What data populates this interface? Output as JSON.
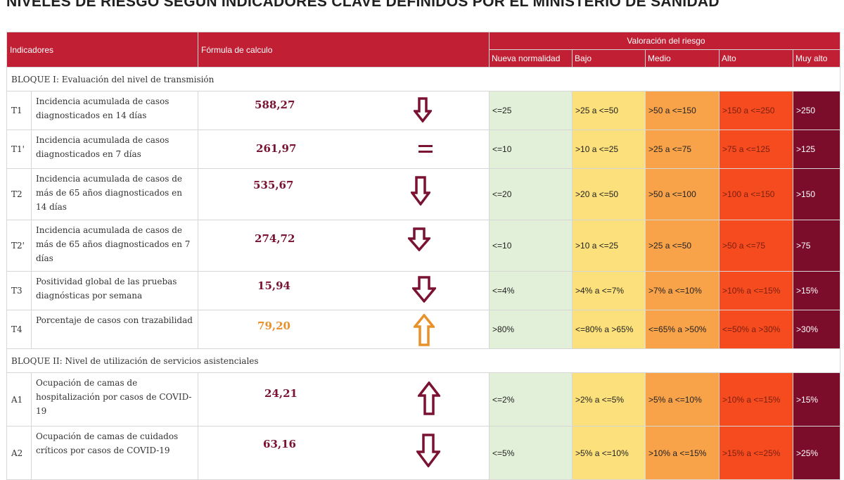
{
  "title": "NIVELES DE RIESGO SEGÚN INDICADORES CLAVE DEFINIDOS POR EL MINISTERIO DE SANIDAD",
  "header": {
    "indicadores": "Indicadores",
    "formula": "Fórmula de calculo",
    "valoracion": "Valoración del riesgo",
    "levels": [
      "Nueva normalidad",
      "Bajo",
      "Medio",
      "Alto",
      "Muy alto"
    ]
  },
  "blocks": [
    {
      "label": "BLOQUE I: Evaluación del nivel de transmisión"
    },
    {
      "label": "BLOQUE II: Nivel de utilización de servicios asistenciales"
    }
  ],
  "rows": [
    {
      "code": "T1",
      "desc": "Incidencia acumulada de casos diagnosticados en 14 días",
      "value": "588,27",
      "trend": "down",
      "ranges": [
        "<=25",
        ">25 a <=50",
        ">50 a <=150",
        ">150 a <=250",
        ">250"
      ]
    },
    {
      "code": "T1'",
      "desc": "Incidencia acumulada de casos diagnosticados en 7 días",
      "value": "261,97",
      "trend": "equal",
      "ranges": [
        "<=10",
        ">10 a <=25",
        ">25 a <=75",
        ">75 a <=125",
        ">125"
      ]
    },
    {
      "code": "T2",
      "desc": "Incidencia acumulada de casos de más de 65 años diagnosticados en 14 días",
      "value": "535,67",
      "trend": "down",
      "ranges": [
        "<=20",
        ">20 a <=50",
        ">50 a <=100",
        ">100 a <=150",
        ">150"
      ]
    },
    {
      "code": "T2'",
      "desc": "Incidencia acumulada de casos de más de 65 años diagnosticados en 7 días",
      "value": "274,72",
      "trend": "down",
      "ranges": [
        "<=10",
        ">10 a <=25",
        ">25 a <=50",
        ">50 a <=75",
        ">75"
      ]
    },
    {
      "code": "T3",
      "desc": "Positividad global de las pruebas diagnósticas por semana",
      "value": "15,94",
      "trend": "down",
      "ranges": [
        "<=4%",
        ">4% a <=7%",
        ">7% a <=10%",
        ">10% a <=15%",
        ">15%"
      ]
    },
    {
      "code": "T4",
      "desc": "Porcentaje de casos con trazabilidad",
      "value": "79,20",
      "trend": "up-orange",
      "ranges": [
        ">80%",
        "<=80% a >65%",
        "<=65% a >50%",
        "<=50% a >30%",
        ">30%"
      ]
    },
    {
      "code": "A1",
      "desc": "Ocupación de camas de hospitalización por casos de COVID-19",
      "value": "24,21",
      "trend": "up",
      "ranges": [
        "<=2%",
        ">2% a <=5%",
        ">5% a <=10%",
        ">10% a <=15%",
        ">15%"
      ]
    },
    {
      "code": "A2",
      "desc": "Ocupación de camas de cuidados críticos por casos de COVID-19",
      "value": "63,16",
      "trend": "down",
      "ranges": [
        "<=5%",
        ">5% a <=10%",
        ">10% a <=15%",
        ">15% a <=25%",
        ">25%"
      ]
    }
  ],
  "colors": {
    "header": "#c01f34",
    "nueva_normalidad": "#e2f0d9",
    "bajo": "#fbe07b",
    "medio": "#f8a24a",
    "alto": "#f64b1f",
    "muy_alto": "#7b0d2b",
    "arrow_dark": "#7a1232",
    "arrow_orange": "#e8902a"
  }
}
